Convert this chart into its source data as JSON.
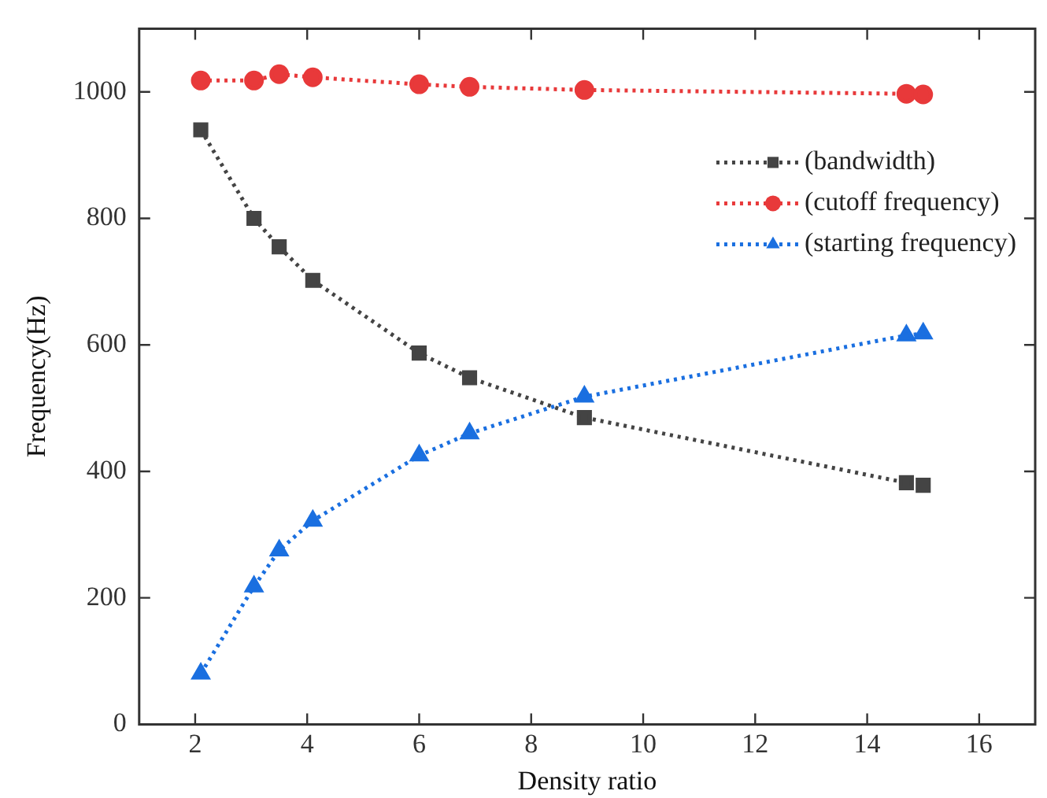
{
  "chart_data": {
    "type": "line",
    "xlabel": "Density ratio",
    "ylabel": "Frequency(Hz)",
    "x": [
      2.1,
      3.05,
      3.5,
      4.1,
      6.0,
      6.9,
      8.95,
      14.7,
      15.0
    ],
    "series": [
      {
        "name": "(bandwidth)",
        "color": "#444444",
        "marker": "square",
        "values": [
          940,
          800,
          755,
          702,
          587,
          548,
          485,
          382,
          378
        ]
      },
      {
        "name": "(cutoff frequency)",
        "color": "#e8393a",
        "marker": "circle",
        "values": [
          1018,
          1018,
          1028,
          1023,
          1012,
          1008,
          1003,
          997,
          996
        ]
      },
      {
        "name": "(starting frequency)",
        "color": "#1a6fe0",
        "marker": "triangle",
        "values": [
          80,
          218,
          275,
          322,
          425,
          460,
          518,
          615,
          618
        ]
      }
    ],
    "xlim": [
      1,
      17
    ],
    "xticks": [
      2,
      4,
      6,
      8,
      10,
      12,
      14,
      16
    ],
    "ylim": [
      0,
      1100
    ],
    "yticks": [
      0,
      200,
      400,
      600,
      800,
      1000
    ],
    "grid": false,
    "legend": "top right",
    "line_style": "dotted"
  }
}
